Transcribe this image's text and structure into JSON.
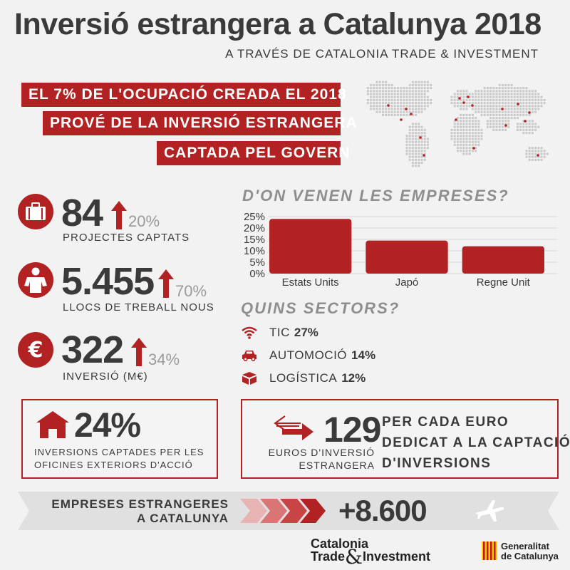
{
  "header": {
    "title": "Inversió estrangera a Catalunya 2018",
    "subtitle": "A TRAVÉS DE CATALONIA TRADE & INVESTMENT"
  },
  "highlight": {
    "lines": [
      "EL 7% DE L'OCUPACIÓ CREADA EL 2018",
      "PROVÉ DE LA INVERSIÓ ESTRANGERA",
      "CAPTADA PEL GOVERN"
    ]
  },
  "stats": [
    {
      "value": "84",
      "change": "20%",
      "label": "PROJECTES CAPTATS",
      "icon": "briefcase-icon"
    },
    {
      "value": "5.455",
      "change": "70%",
      "label": "LLOCS DE TREBALL NOUS",
      "icon": "person-icon"
    },
    {
      "value": "322",
      "change": "34%",
      "label": "INVERSIÓ (M€)",
      "icon": "euro-icon"
    }
  ],
  "origin": {
    "title": "D'ON VENEN LES EMPRESES?"
  },
  "chart_data": {
    "type": "bar",
    "categories": [
      "Estats Units",
      "Japó",
      "Regne Unit"
    ],
    "values": [
      24,
      14.5,
      12
    ],
    "ylim": [
      0,
      25
    ],
    "yticks": [
      "25%",
      "20%",
      "15%",
      "10%",
      "5%",
      "0%"
    ],
    "grid": true,
    "color": "#b22222"
  },
  "sectors": {
    "title": "QUINS SECTORS?",
    "items": [
      {
        "name": "TIC",
        "value": "27%",
        "icon": "wifi-icon"
      },
      {
        "name": "AUTOMOCIÓ",
        "value": "14%",
        "icon": "car-icon"
      },
      {
        "name": "LOGÍSTICA",
        "value": "12%",
        "icon": "box-icon"
      }
    ]
  },
  "offices": {
    "value": "24%",
    "label_line1": "INVERSIONS CAPTADES PER LES",
    "label_line2": "OFICINES EXTERIORS D'ACCIÓ"
  },
  "ratio": {
    "value": "129",
    "label_line1": "EUROS D'INVERSIÓ",
    "label_line2": "ESTRANGERA",
    "desc_lines": [
      "PER CADA EURO",
      "DEDICAT A LA CAPTACIÓ",
      "D'INVERSIONS"
    ]
  },
  "companies": {
    "label_line1": "EMPRESES ESTRANGERES",
    "label_line2": "A CATALUNYA",
    "value": "+8.600"
  },
  "footer": {
    "cti_line1": "Catalonia",
    "cti_line2a": "Trade",
    "cti_amp": "&",
    "cti_line2b": "Investment",
    "gen_line1": "Generalitat",
    "gen_line2": "de Catalunya"
  },
  "colors": {
    "accent": "#b22222",
    "text": "#3a3a3a",
    "muted": "#9a9a9a",
    "background": "#f2f2f2"
  }
}
